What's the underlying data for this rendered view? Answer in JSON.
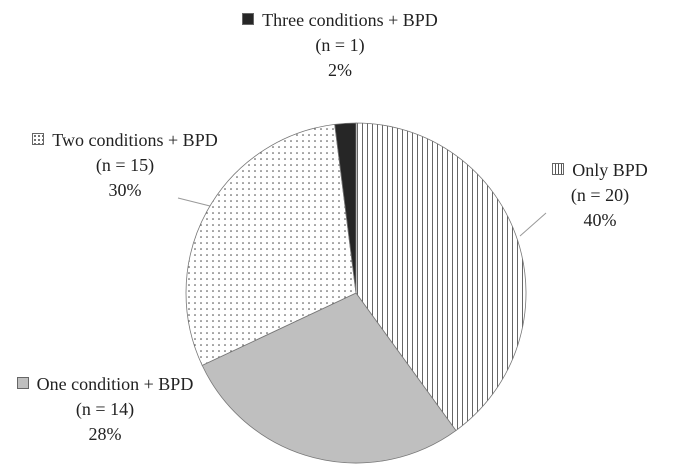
{
  "chart_data": {
    "type": "pie",
    "categories": [
      "Only BPD",
      "One condition + BPD",
      "Two conditions + BPD",
      "Three conditions + BPD"
    ],
    "values": [
      40,
      28,
      30,
      2
    ],
    "value_labels": [
      "40%",
      "28%",
      "30%",
      "2%"
    ],
    "n_labels": [
      "(n = 20)",
      "(n = 14)",
      "(n = 15)",
      "(n = 1)"
    ],
    "fills": [
      "vertical-lines",
      "#bfbfbf",
      "dots",
      "#262626"
    ]
  }
}
